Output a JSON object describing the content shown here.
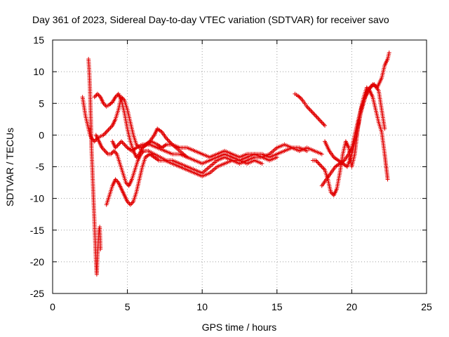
{
  "chart_data": {
    "type": "scatter",
    "title": "Day 361 of 2023, Sidereal Day-to-day VTEC variation (SDTVAR) for receiver savo",
    "xlabel": "GPS time / hours",
    "ylabel": "SDTVAR / TECUs",
    "xlim": [
      0,
      25
    ],
    "ylim": [
      -25,
      15
    ],
    "xticks": [
      0,
      5,
      10,
      15,
      20,
      25
    ],
    "yticks": [
      15,
      10,
      5,
      0,
      -5,
      -10,
      -15,
      -20,
      -25
    ],
    "grid": true,
    "marker": "+",
    "color": "#e00000",
    "series": [
      {
        "name": "t1",
        "x": [
          2.0,
          2.2,
          2.4,
          2.5,
          2.6,
          2.8,
          3.0,
          3.2,
          3.4,
          3.6,
          3.8,
          4.0,
          4.2,
          4.4,
          4.6,
          4.8,
          5.0,
          5.2,
          5.4,
          5.6,
          5.8,
          6.0,
          6.3,
          6.6,
          7.0,
          7.3,
          7.6,
          8.0,
          8.5,
          9.0,
          9.5,
          10.0,
          10.5,
          11.0,
          11.5,
          12.0,
          12.5,
          13.0,
          13.5,
          14.0,
          14.5,
          15.0,
          15.5,
          16.0,
          16.5,
          17.0,
          17.5,
          18.0
        ],
        "y": [
          6.0,
          3.0,
          1.0,
          0.0,
          -0.5,
          -1.0,
          -0.5,
          -0.2,
          0.0,
          0.5,
          1.0,
          1.5,
          2.5,
          4.0,
          6.0,
          5.5,
          4.0,
          2.0,
          0.0,
          -1.5,
          -2.0,
          -2.0,
          -1.5,
          -1.0,
          -1.5,
          -2.0,
          -1.5,
          -1.5,
          -2.0,
          -2.0,
          -2.5,
          -3.0,
          -3.5,
          -3.0,
          -2.5,
          -3.0,
          -3.5,
          -3.0,
          -3.0,
          -3.5,
          -3.0,
          -2.0,
          -1.5,
          -2.0,
          -2.5,
          -2.0,
          -2.5,
          -3.0
        ]
      },
      {
        "name": "t2",
        "x": [
          2.8,
          3.0,
          3.2,
          3.4,
          3.6,
          3.8,
          4.0,
          4.2,
          4.4,
          4.6,
          4.8,
          5.0,
          5.2,
          5.4,
          5.6,
          5.8,
          6.0,
          6.2,
          6.5,
          6.8,
          7.0,
          7.3,
          7.6,
          8.0,
          8.5,
          9.0,
          9.5,
          10.0,
          10.5,
          11.0,
          11.5,
          12.0,
          12.5,
          13.0,
          13.5,
          14.0,
          14.5,
          15.0,
          15.5,
          16.0,
          16.5,
          17.0
        ],
        "y": [
          6.0,
          6.5,
          6.0,
          5.0,
          4.5,
          4.8,
          5.2,
          6.0,
          6.5,
          5.5,
          3.5,
          1.0,
          -1.0,
          -2.5,
          -3.5,
          -3.0,
          -2.0,
          -1.5,
          -1.0,
          0.0,
          1.0,
          0.5,
          -0.5,
          -1.5,
          -2.5,
          -3.5,
          -4.0,
          -4.5,
          -4.0,
          -3.5,
          -3.0,
          -3.5,
          -4.0,
          -3.5,
          -3.0,
          -3.0,
          -3.5,
          -3.0,
          -2.5,
          -2.0,
          -2.0,
          -2.5
        ]
      },
      {
        "name": "t3",
        "x": [
          2.9,
          3.1,
          3.3,
          3.5,
          3.7,
          3.9,
          4.1,
          4.3,
          4.5,
          4.7,
          4.9,
          5.1,
          5.3,
          5.5,
          5.7,
          5.9,
          6.1,
          6.4,
          6.8,
          7.2,
          7.6,
          8.0,
          8.5,
          9.0,
          9.5,
          10.0,
          10.5,
          11.0,
          11.5,
          12.0,
          12.5,
          13.0,
          13.5,
          14.0,
          14.5,
          15.0
        ],
        "y": [
          0.0,
          -1.0,
          -2.0,
          -2.5,
          -3.0,
          -3.0,
          -2.5,
          -3.0,
          -4.5,
          -6.0,
          -7.5,
          -8.0,
          -7.0,
          -5.5,
          -4.0,
          -3.0,
          -2.5,
          -2.5,
          -3.0,
          -3.5,
          -4.0,
          -4.0,
          -4.5,
          -5.0,
          -5.5,
          -6.0,
          -5.0,
          -4.0,
          -3.5,
          -4.0,
          -4.5,
          -4.0,
          -3.5,
          -3.5,
          -4.0,
          -3.5
        ]
      },
      {
        "name": "t4",
        "x": [
          3.6,
          3.8,
          4.0,
          4.2,
          4.4,
          4.6,
          4.8,
          5.0,
          5.2,
          5.4,
          5.6,
          5.8,
          6.0,
          6.2,
          6.5,
          6.8,
          7.1,
          7.5,
          8.0,
          8.5,
          9.0,
          9.5,
          10.0,
          10.5,
          11.0,
          11.5,
          12.0,
          12.5,
          13.0,
          13.5,
          14.0
        ],
        "y": [
          -11.0,
          -9.5,
          -8.0,
          -7.0,
          -7.5,
          -8.5,
          -9.5,
          -10.5,
          -11.0,
          -10.5,
          -9.0,
          -7.0,
          -5.0,
          -3.5,
          -3.0,
          -3.5,
          -4.0,
          -4.0,
          -4.5,
          -5.0,
          -5.5,
          -6.0,
          -6.5,
          -6.0,
          -5.0,
          -4.5,
          -4.0,
          -4.0,
          -4.5,
          -4.0,
          -4.5
        ]
      },
      {
        "name": "t5",
        "x": [
          4.0,
          4.2,
          4.4,
          4.6,
          4.8,
          5.0,
          5.3,
          5.6,
          6.0,
          6.5,
          7.0,
          7.5,
          8.0,
          8.5,
          9.0
        ],
        "y": [
          -1.0,
          -2.0,
          -1.5,
          -1.0,
          -1.5,
          -2.0,
          -2.5,
          -2.0,
          -1.5,
          -1.5,
          -2.0,
          -2.5,
          -3.0,
          -3.0,
          -3.5
        ]
      },
      {
        "name": "spike",
        "x": [
          2.4,
          2.45,
          2.5,
          2.55,
          2.6,
          2.65,
          2.7,
          2.75,
          2.8,
          2.85,
          2.9,
          2.95,
          3.0,
          3.05,
          3.1,
          3.15,
          3.2
        ],
        "y": [
          12.0,
          10.0,
          7.0,
          3.0,
          -2.0,
          -5.0,
          -8.0,
          -11.0,
          -14.0,
          -17.0,
          -20.0,
          -22.0,
          -19.0,
          -17.0,
          -15.0,
          -14.5,
          -18.0
        ]
      },
      {
        "name": "t6",
        "x": [
          16.2,
          16.4,
          16.6,
          16.8,
          17.0,
          17.2,
          17.4,
          17.6,
          17.8,
          18.0,
          18.2
        ],
        "y": [
          6.5,
          6.2,
          5.8,
          5.2,
          4.5,
          4.0,
          3.5,
          3.0,
          2.5,
          2.0,
          1.5
        ]
      },
      {
        "name": "t7",
        "x": [
          17.4,
          17.6,
          17.8,
          18.0,
          18.2,
          18.4,
          18.6,
          18.8,
          19.0,
          19.2,
          19.4,
          19.6,
          19.8,
          20.0,
          20.2,
          20.4,
          20.6,
          20.8,
          21.0,
          21.2,
          21.4,
          21.6,
          21.8,
          22.0,
          22.2,
          22.4
        ],
        "y": [
          -4.0,
          -4.0,
          -4.5,
          -5.0,
          -5.5,
          -7.0,
          -9.0,
          -9.5,
          -8.5,
          -6.0,
          -3.0,
          -1.0,
          -2.0,
          -5.0,
          -3.0,
          1.0,
          4.0,
          6.0,
          7.5,
          7.0,
          6.0,
          4.0,
          2.0,
          0.5,
          -3.0,
          -7.0
        ]
      },
      {
        "name": "t8",
        "x": [
          18.0,
          18.3,
          18.6,
          18.9,
          19.2,
          19.5,
          19.8,
          20.0,
          20.2,
          20.5,
          20.8,
          21.1,
          21.4,
          21.7,
          22.0,
          22.2,
          22.4,
          22.5
        ],
        "y": [
          -8.0,
          -7.0,
          -6.0,
          -5.0,
          -4.5,
          -4.0,
          -3.0,
          -2.0,
          0.0,
          3.0,
          5.5,
          7.0,
          8.0,
          7.5,
          9.0,
          11.0,
          12.0,
          13.0
        ]
      },
      {
        "name": "t9",
        "x": [
          18.2,
          18.5,
          18.8,
          19.1,
          19.4,
          19.7,
          20.0,
          20.3,
          20.6,
          20.9,
          21.2,
          21.5,
          21.8,
          22.0,
          22.2
        ],
        "y": [
          -1.0,
          -2.5,
          -3.5,
          -4.0,
          -4.5,
          -5.0,
          -3.0,
          0.0,
          3.5,
          6.0,
          7.5,
          8.0,
          7.0,
          4.0,
          1.0
        ]
      }
    ]
  }
}
